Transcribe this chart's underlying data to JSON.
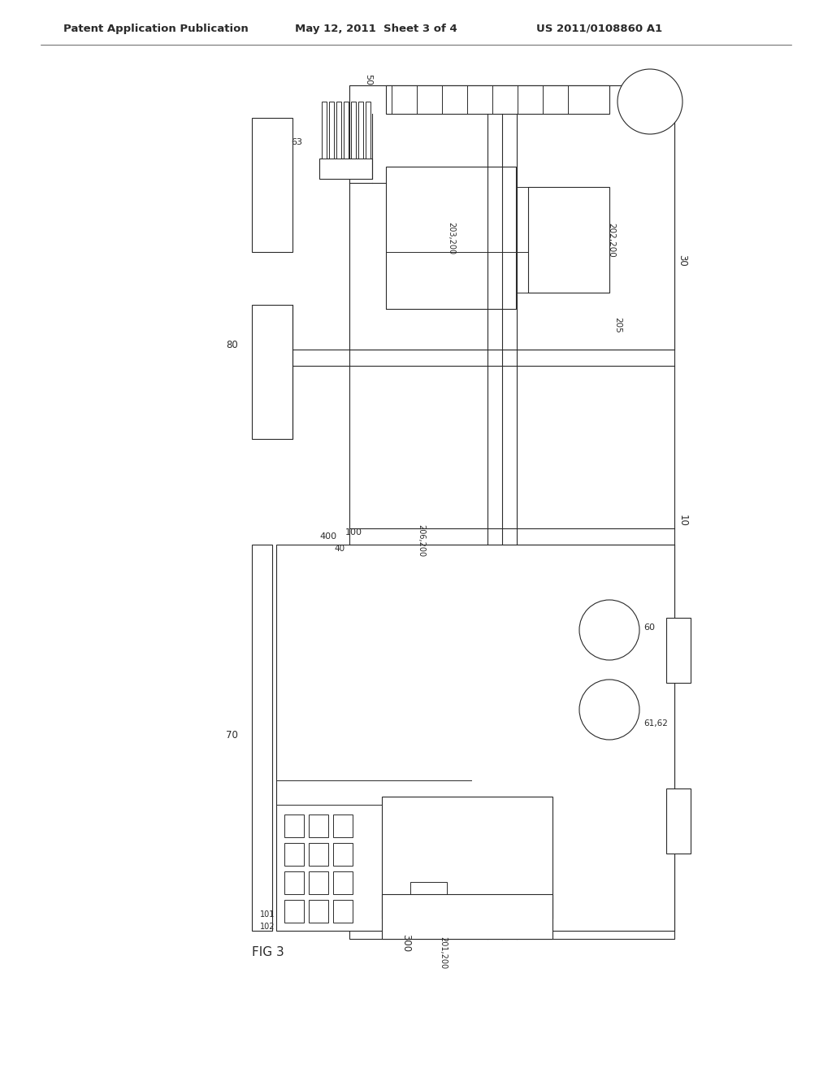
{
  "bg_color": "#ffffff",
  "line_color": "#2a2a2a",
  "header1": "Patent Application Publication",
  "header2": "May 12, 2011  Sheet 3 of 4",
  "header3": "US 2011/0108860 A1",
  "fig_label": "FIG 3"
}
